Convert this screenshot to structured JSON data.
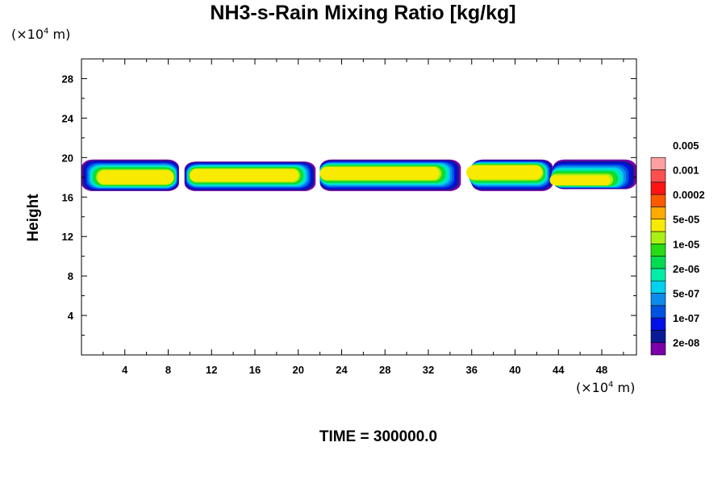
{
  "chart_data": {
    "type": "heatmap",
    "title": "NH3-s-Rain Mixing Ratio [kg/kg]",
    "ylabel": "Height",
    "xunit": "(×10",
    "yunit": "(×10",
    "unit_exp": "4",
    "unit_tail": " m)",
    "footer": "TIME = 300000.0",
    "xlim": [
      0,
      51.2
    ],
    "ylim": [
      0,
      30
    ],
    "xticks": [
      4,
      8,
      12,
      16,
      20,
      24,
      28,
      32,
      36,
      40,
      44,
      48
    ],
    "yticks": [
      4,
      8,
      12,
      16,
      20,
      24,
      28
    ],
    "colorbar": {
      "colors": [
        "#7b00a8",
        "#0a1a96",
        "#0010e6",
        "#0052e0",
        "#0a8cec",
        "#00d2f0",
        "#00eea8",
        "#00dc50",
        "#28dc14",
        "#aaf014",
        "#f8ea00",
        "#ffaa00",
        "#ff5a00",
        "#ff1414",
        "#ff5050",
        "#ffa0a0"
      ],
      "labels": [
        "2e-08",
        "1e-07",
        "5e-07",
        "2e-06",
        "1e-05",
        "5e-05",
        "0.0002",
        "0.001",
        "0.005"
      ]
    },
    "cells": [
      {
        "x0": 0,
        "x1": 9.0,
        "y0": 16.6,
        "y1": 19.8,
        "cx": 5.0,
        "cy": 18.0,
        "rx": 3.5,
        "ry": 1.0
      },
      {
        "x0": 9.5,
        "x1": 21.6,
        "y0": 16.6,
        "y1": 19.6,
        "cx": 15.0,
        "cy": 18.2,
        "rx": 5.0,
        "ry": 0.9
      },
      {
        "x0": 22.0,
        "x1": 35.0,
        "y0": 16.6,
        "y1": 19.8,
        "cx": 27.5,
        "cy": 18.4,
        "rx": 5.5,
        "ry": 0.9
      },
      {
        "x0": 36.0,
        "x1": 43.5,
        "y0": 16.6,
        "y1": 19.8,
        "cx": 39.0,
        "cy": 18.5,
        "rx": 3.5,
        "ry": 1.0
      },
      {
        "x0": 43.5,
        "x1": 51.2,
        "y0": 16.8,
        "y1": 19.8,
        "cx": 46.0,
        "cy": 17.7,
        "rx": 2.8,
        "ry": 0.7
      }
    ]
  }
}
